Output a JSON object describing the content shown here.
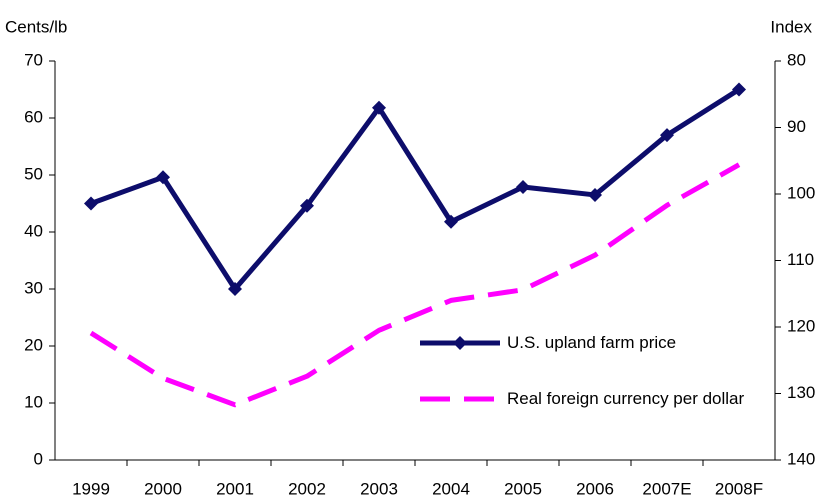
{
  "chart_data": {
    "type": "line",
    "ylabel": "Cents/lb",
    "y2label": "Index",
    "categories": [
      "1999",
      "2000",
      "2001",
      "2002",
      "2003",
      "2004",
      "2005",
      "2006",
      "2007E",
      "2008F"
    ],
    "series": [
      {
        "name": "U.S. upland farm price",
        "color": "#0d0d6b",
        "style": "solid-diamond",
        "values": [
          45,
          49.6,
          30,
          44.6,
          61.8,
          41.8,
          47.9,
          46.5,
          57,
          65
        ]
      },
      {
        "name": "Real foreign currency per dollar",
        "color": "#ff00ff",
        "style": "dashed",
        "axis": "y2",
        "values": [
          120.9,
          127.7,
          131.7,
          127.4,
          120.5,
          116,
          114.4,
          109.2,
          101.7,
          95.6
        ]
      }
    ],
    "ylim": [
      0,
      70
    ],
    "yticks": [
      0,
      10,
      20,
      30,
      40,
      50,
      60,
      70
    ],
    "y2lim": [
      140,
      80
    ],
    "y2ticks": [
      80,
      90,
      100,
      110,
      120,
      130,
      140
    ],
    "grid": false,
    "legend": "lower right"
  }
}
